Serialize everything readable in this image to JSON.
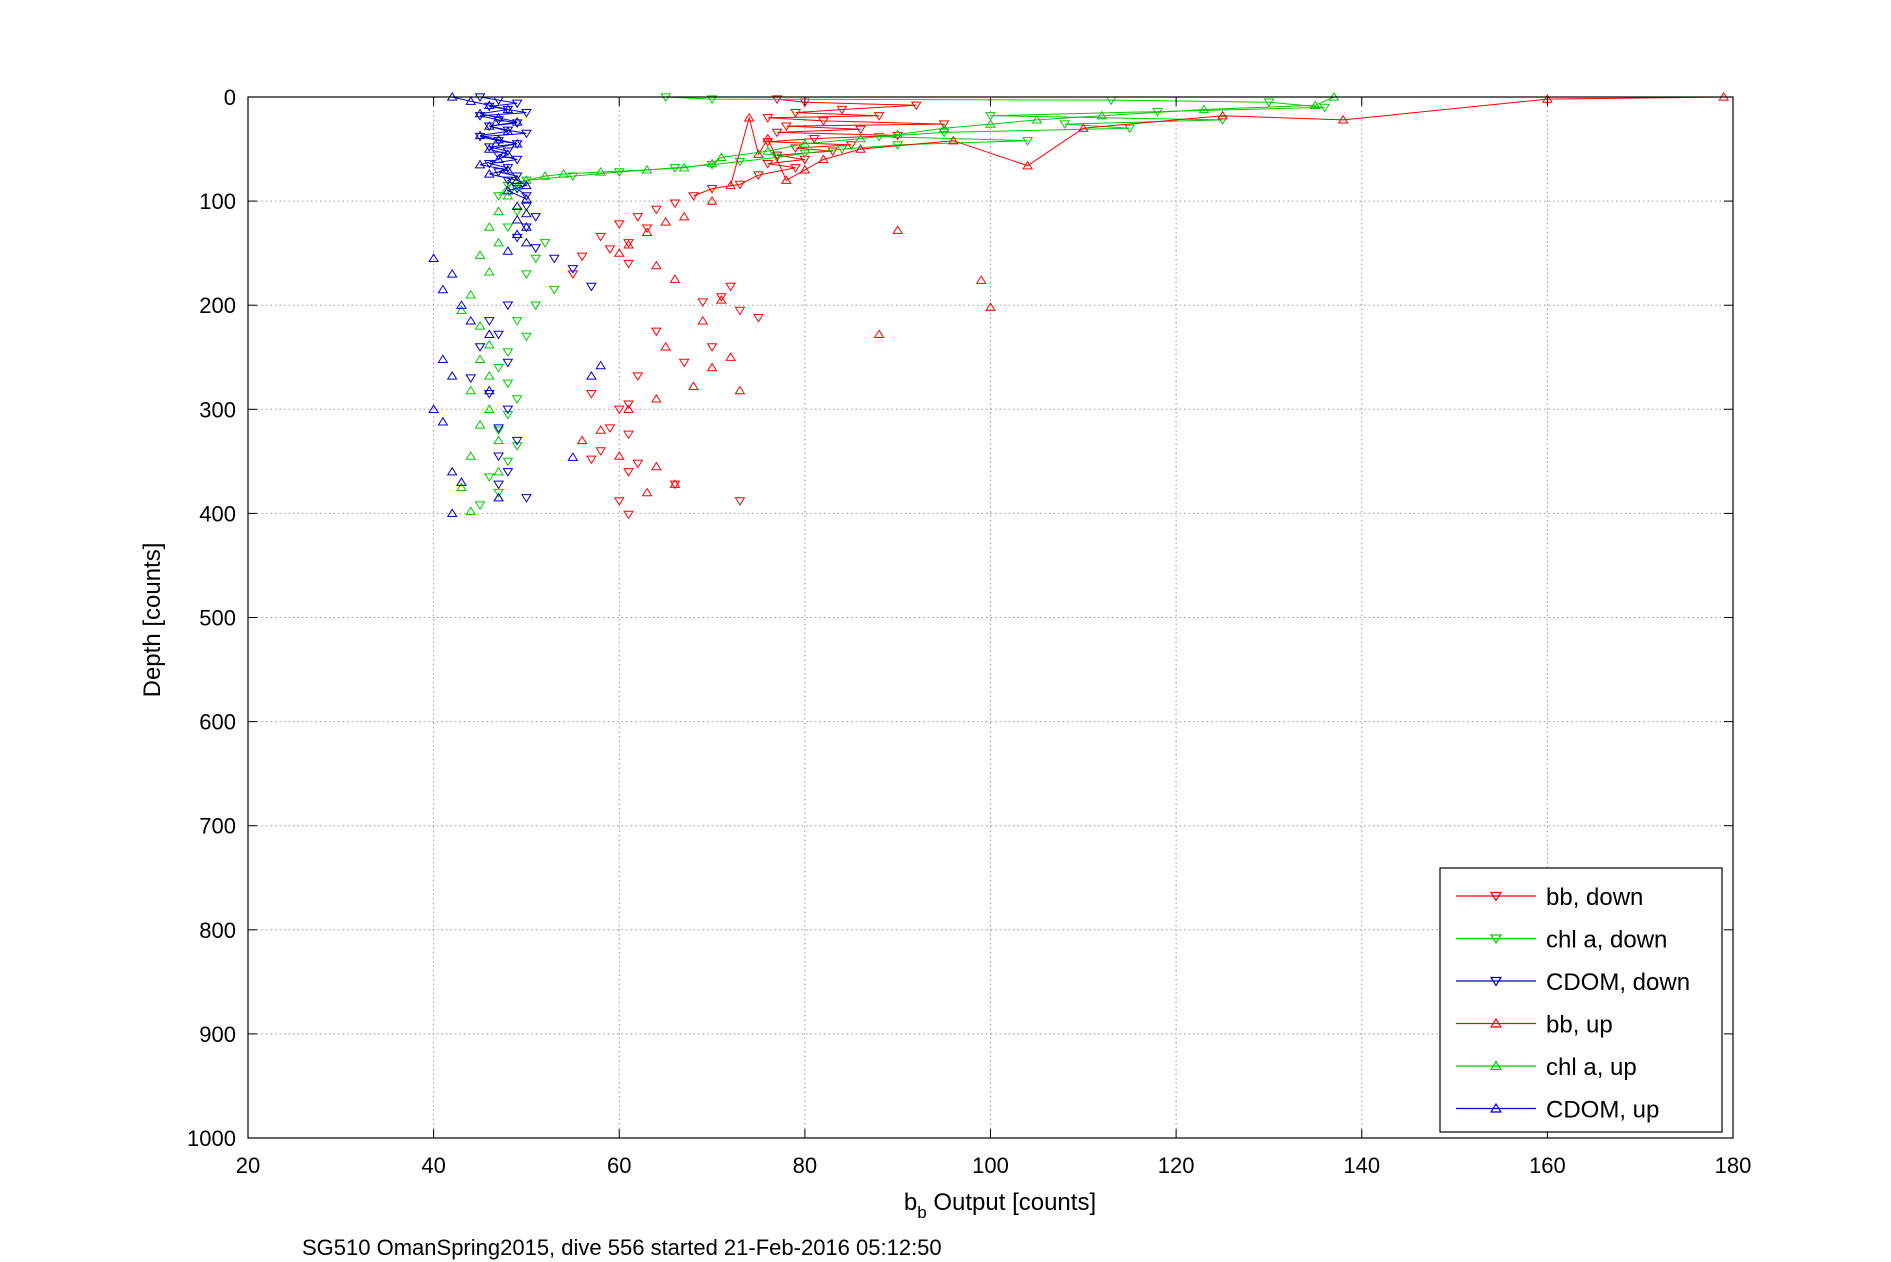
{
  "chart_data": {
    "type": "scatter",
    "xlabel_main": "b",
    "xlabel_sub": "b",
    "xlabel_rest": " Output [counts]",
    "ylabel": "Depth [counts]",
    "caption": "SG510 OmanSpring2015, dive 556 started 21-Feb-2016 05:12:50",
    "xlim": [
      20,
      180
    ],
    "ylim": [
      0,
      1000
    ],
    "y_reversed": true,
    "grid": true,
    "legend_position": "bottom-right",
    "x_ticks": [
      "20",
      "40",
      "60",
      "80",
      "100",
      "120",
      "140",
      "160",
      "180"
    ],
    "y_ticks": [
      "0",
      "100",
      "200",
      "300",
      "400",
      "500",
      "600",
      "700",
      "800",
      "900",
      "1000"
    ],
    "series": [
      {
        "name": "bb, down",
        "color": "#ff0000",
        "marker": "triangle-down",
        "points": [
          [
            77,
            2
          ],
          [
            80,
            5
          ],
          [
            92,
            8
          ],
          [
            84,
            12
          ],
          [
            79,
            15
          ],
          [
            88,
            18
          ],
          [
            76,
            20
          ],
          [
            82,
            23
          ],
          [
            95,
            26
          ],
          [
            78,
            28
          ],
          [
            86,
            31
          ],
          [
            77,
            34
          ],
          [
            90,
            37
          ],
          [
            81,
            40
          ],
          [
            76,
            43
          ],
          [
            85,
            46
          ],
          [
            79,
            49
          ],
          [
            83,
            52
          ],
          [
            77,
            56
          ],
          [
            80,
            60
          ],
          [
            76,
            64
          ],
          [
            79,
            68
          ],
          [
            75,
            75
          ],
          [
            73,
            84
          ],
          [
            70,
            88
          ],
          [
            68,
            95
          ],
          [
            66,
            102
          ],
          [
            64,
            108
          ],
          [
            62,
            115
          ],
          [
            60,
            122
          ],
          [
            63,
            126
          ],
          [
            58,
            134
          ],
          [
            61,
            140
          ],
          [
            59,
            146
          ],
          [
            56,
            153
          ],
          [
            61,
            160
          ],
          [
            55,
            170
          ],
          [
            72,
            182
          ],
          [
            71,
            192
          ],
          [
            69,
            197
          ],
          [
            73,
            205
          ],
          [
            75,
            212
          ],
          [
            64,
            225
          ],
          [
            70,
            240
          ],
          [
            67,
            255
          ],
          [
            62,
            268
          ],
          [
            57,
            285
          ],
          [
            61,
            295
          ],
          [
            60,
            300
          ],
          [
            59,
            318
          ],
          [
            61,
            324
          ],
          [
            58,
            340
          ],
          [
            57,
            348
          ],
          [
            62,
            352
          ],
          [
            61,
            360
          ],
          [
            66,
            372
          ],
          [
            60,
            388
          ],
          [
            73,
            388
          ],
          [
            61,
            401
          ]
        ]
      },
      {
        "name": "chl a, down",
        "color": "#00cc00",
        "marker": "triangle-down",
        "points": [
          [
            65,
            0
          ],
          [
            70,
            2
          ],
          [
            113,
            3
          ],
          [
            130,
            5
          ],
          [
            136,
            10
          ],
          [
            118,
            14
          ],
          [
            100,
            18
          ],
          [
            125,
            22
          ],
          [
            108,
            26
          ],
          [
            115,
            30
          ],
          [
            95,
            34
          ],
          [
            88,
            38
          ],
          [
            104,
            42
          ],
          [
            90,
            46
          ],
          [
            84,
            50
          ],
          [
            80,
            54
          ],
          [
            77,
            58
          ],
          [
            73,
            62
          ],
          [
            70,
            65
          ],
          [
            66,
            68
          ],
          [
            60,
            72
          ],
          [
            55,
            76
          ],
          [
            50,
            80
          ],
          [
            48,
            85
          ],
          [
            47,
            95
          ],
          [
            49,
            110
          ],
          [
            48,
            125
          ],
          [
            52,
            140
          ],
          [
            51,
            155
          ],
          [
            50,
            170
          ],
          [
            53,
            185
          ],
          [
            51,
            200
          ],
          [
            49,
            215
          ],
          [
            50,
            230
          ],
          [
            48,
            245
          ],
          [
            47,
            260
          ],
          [
            48,
            275
          ],
          [
            49,
            290
          ],
          [
            48,
            305
          ],
          [
            47,
            320
          ],
          [
            49,
            335
          ],
          [
            48,
            350
          ],
          [
            46,
            365
          ],
          [
            47,
            380
          ],
          [
            45,
            392
          ]
        ]
      },
      {
        "name": "CDOM, down",
        "color": "#0000cc",
        "marker": "triangle-down",
        "points": [
          [
            45,
            0
          ],
          [
            47,
            3
          ],
          [
            49,
            6
          ],
          [
            46,
            9
          ],
          [
            48,
            12
          ],
          [
            50,
            15
          ],
          [
            45,
            18
          ],
          [
            47,
            22
          ],
          [
            49,
            25
          ],
          [
            46,
            28
          ],
          [
            48,
            32
          ],
          [
            50,
            35
          ],
          [
            45,
            38
          ],
          [
            47,
            42
          ],
          [
            49,
            45
          ],
          [
            46,
            48
          ],
          [
            48,
            52
          ],
          [
            47,
            56
          ],
          [
            49,
            60
          ],
          [
            46,
            64
          ],
          [
            48,
            68
          ],
          [
            47,
            72
          ],
          [
            49,
            76
          ],
          [
            48,
            80
          ],
          [
            49,
            88
          ],
          [
            50,
            95
          ],
          [
            50,
            105
          ],
          [
            51,
            115
          ],
          [
            50,
            125
          ],
          [
            49,
            135
          ],
          [
            51,
            145
          ],
          [
            53,
            155
          ],
          [
            55,
            165
          ],
          [
            57,
            182
          ],
          [
            48,
            200
          ],
          [
            46,
            215
          ],
          [
            47,
            228
          ],
          [
            45,
            240
          ],
          [
            48,
            255
          ],
          [
            44,
            270
          ],
          [
            46,
            285
          ],
          [
            48,
            300
          ],
          [
            47,
            318
          ],
          [
            49,
            330
          ],
          [
            47,
            345
          ],
          [
            48,
            360
          ],
          [
            47,
            372
          ],
          [
            50,
            385
          ]
        ]
      },
      {
        "name": "bb, up",
        "color": "#ff0000",
        "marker": "triangle-up",
        "points": [
          [
            179,
            0
          ],
          [
            160,
            2
          ],
          [
            138,
            22
          ],
          [
            125,
            18
          ],
          [
            110,
            30
          ],
          [
            104,
            66
          ],
          [
            96,
            42
          ],
          [
            90,
            128
          ],
          [
            99,
            176
          ],
          [
            100,
            202
          ],
          [
            88,
            228
          ],
          [
            86,
            50
          ],
          [
            82,
            60
          ],
          [
            80,
            70
          ],
          [
            78,
            80
          ],
          [
            76,
            40
          ],
          [
            75,
            55
          ],
          [
            74,
            20
          ],
          [
            72,
            85
          ],
          [
            70,
            100
          ],
          [
            67,
            115
          ],
          [
            65,
            120
          ],
          [
            63,
            130
          ],
          [
            61,
            142
          ],
          [
            60,
            150
          ],
          [
            64,
            162
          ],
          [
            66,
            175
          ],
          [
            71,
            195
          ],
          [
            69,
            215
          ],
          [
            65,
            240
          ],
          [
            72,
            250
          ],
          [
            70,
            260
          ],
          [
            68,
            278
          ],
          [
            73,
            282
          ],
          [
            64,
            290
          ],
          [
            61,
            300
          ],
          [
            58,
            320
          ],
          [
            56,
            330
          ],
          [
            60,
            345
          ],
          [
            64,
            355
          ],
          [
            66,
            372
          ],
          [
            63,
            380
          ]
        ]
      },
      {
        "name": "chl a, up",
        "color": "#00cc00",
        "marker": "triangle-up",
        "points": [
          [
            137,
            0
          ],
          [
            135,
            8
          ],
          [
            123,
            12
          ],
          [
            112,
            18
          ],
          [
            105,
            22
          ],
          [
            100,
            26
          ],
          [
            95,
            30
          ],
          [
            90,
            36
          ],
          [
            86,
            40
          ],
          [
            80,
            45
          ],
          [
            76,
            52
          ],
          [
            71,
            58
          ],
          [
            70,
            64
          ],
          [
            67,
            68
          ],
          [
            63,
            70
          ],
          [
            58,
            72
          ],
          [
            54,
            74
          ],
          [
            52,
            76
          ],
          [
            50,
            80
          ],
          [
            49,
            86
          ],
          [
            48,
            95
          ],
          [
            47,
            110
          ],
          [
            46,
            125
          ],
          [
            47,
            140
          ],
          [
            45,
            152
          ],
          [
            46,
            168
          ],
          [
            44,
            190
          ],
          [
            43,
            205
          ],
          [
            45,
            220
          ],
          [
            46,
            238
          ],
          [
            45,
            252
          ],
          [
            46,
            268
          ],
          [
            44,
            282
          ],
          [
            46,
            300
          ],
          [
            45,
            315
          ],
          [
            47,
            330
          ],
          [
            44,
            345
          ],
          [
            47,
            360
          ],
          [
            43,
            375
          ],
          [
            44,
            398
          ]
        ]
      },
      {
        "name": "CDOM, up",
        "color": "#0000cc",
        "marker": "triangle-up",
        "points": [
          [
            42,
            0
          ],
          [
            44,
            4
          ],
          [
            46,
            8
          ],
          [
            48,
            12
          ],
          [
            45,
            16
          ],
          [
            47,
            20
          ],
          [
            49,
            24
          ],
          [
            46,
            28
          ],
          [
            48,
            33
          ],
          [
            45,
            37
          ],
          [
            47,
            41
          ],
          [
            49,
            45
          ],
          [
            46,
            50
          ],
          [
            48,
            55
          ],
          [
            47,
            60
          ],
          [
            45,
            65
          ],
          [
            48,
            70
          ],
          [
            46,
            74
          ],
          [
            49,
            80
          ],
          [
            50,
            85
          ],
          [
            48,
            90
          ],
          [
            50,
            98
          ],
          [
            49,
            105
          ],
          [
            50,
            112
          ],
          [
            49,
            118
          ],
          [
            50,
            125
          ],
          [
            49,
            132
          ],
          [
            50,
            140
          ],
          [
            48,
            148
          ],
          [
            40,
            155
          ],
          [
            42,
            170
          ],
          [
            41,
            185
          ],
          [
            43,
            200
          ],
          [
            44,
            215
          ],
          [
            46,
            228
          ],
          [
            41,
            252
          ],
          [
            42,
            268
          ],
          [
            46,
            282
          ],
          [
            40,
            300
          ],
          [
            41,
            312
          ],
          [
            42,
            360
          ],
          [
            43,
            370
          ],
          [
            47,
            385
          ],
          [
            42,
            400
          ],
          [
            58,
            258
          ],
          [
            57,
            268
          ],
          [
            55,
            346
          ]
        ]
      }
    ],
    "legend": [
      {
        "label": "bb, down",
        "color": "#ff0000",
        "marker": "down"
      },
      {
        "label": "chl a, down",
        "color": "#00cc00",
        "marker": "down"
      },
      {
        "label": "CDOM, down",
        "color": "#0000cc",
        "marker": "down"
      },
      {
        "label": "bb, up",
        "color": "#ff0000",
        "marker": "up"
      },
      {
        "label": "chl a, up",
        "color": "#00cc00",
        "marker": "up"
      },
      {
        "label": "CDOM, up",
        "color": "#0000cc",
        "marker": "up"
      }
    ]
  }
}
